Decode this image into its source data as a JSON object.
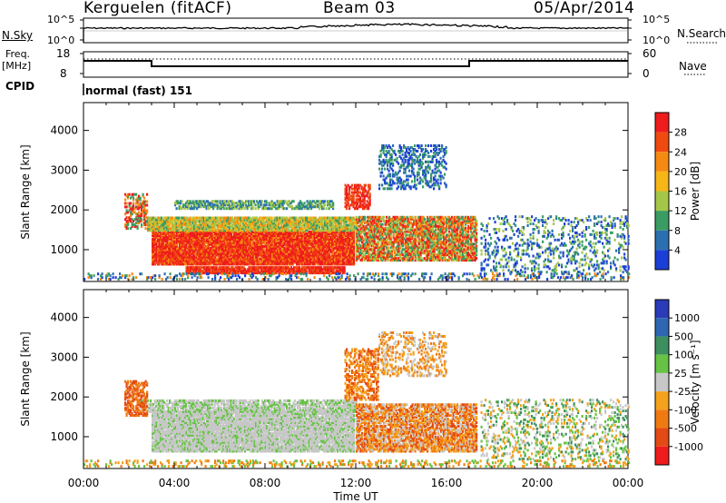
{
  "header": {
    "station": "Kerguelen (fitACF)",
    "beam": "Beam 03",
    "date": "05/Apr/2014"
  },
  "panels": {
    "nsky": {
      "label": "N.Sky",
      "left_ticks": [
        "10^5",
        "10^0"
      ],
      "right_ticks": [
        "10^5",
        "10^0"
      ],
      "right_label": "N.Search"
    },
    "freq": {
      "label_line1": "Freq.",
      "label_line2": "[MHz]",
      "left_ticks": [
        "18",
        "8"
      ],
      "right_ticks": [
        "60",
        "0"
      ],
      "right_label": "Nave"
    },
    "cpid": {
      "label": "CPID",
      "text": "normal (fast) 151"
    }
  },
  "chart_data": [
    {
      "type": "heatmap",
      "name": "power",
      "ylabel": "Slant Range [km]",
      "yticks": [
        "4000",
        "3000",
        "2000",
        "1000"
      ],
      "ylim": [
        200,
        4700
      ],
      "xlim": [
        0,
        24
      ],
      "colorbar": {
        "label": "Power [dB]",
        "ticks": [
          "28",
          "24",
          "20",
          "16",
          "12",
          "8",
          "4"
        ],
        "colors": [
          "#ee1c1c",
          "#f04a10",
          "#f58a12",
          "#f7b617",
          "#a6c64a",
          "#3a9c63",
          "#2b6fb0",
          "#1b3fd6"
        ]
      }
    },
    {
      "type": "heatmap",
      "name": "velocity",
      "ylabel": "Slant Range [km]",
      "yticks": [
        "4000",
        "3000",
        "2000",
        "1000"
      ],
      "ylim": [
        200,
        4700
      ],
      "xlim": [
        0,
        24
      ],
      "xticks": [
        "00:00",
        "04:00",
        "08:00",
        "12:00",
        "16:00",
        "20:00",
        "00:00"
      ],
      "xlabel": "Time UT",
      "colorbar": {
        "label": "Velocity [m s⁻¹]",
        "ticks": [
          "1000",
          "500",
          "100",
          "25",
          "-25",
          "-100",
          "-500",
          "-1000"
        ],
        "colors": [
          "#2a3ab8",
          "#2e66b2",
          "#3e8f5f",
          "#66c345",
          "#c7c7c7",
          "#f4a11c",
          "#f07a12",
          "#e34a14",
          "#ee1c1c"
        ]
      }
    }
  ]
}
